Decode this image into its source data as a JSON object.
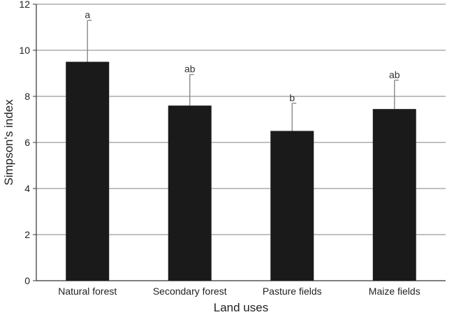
{
  "chart_data": {
    "type": "bar",
    "title": "",
    "xlabel": "Land uses",
    "ylabel": "Simpson's index",
    "ylim": [
      0,
      12
    ],
    "yticks": [
      0,
      2,
      4,
      6,
      8,
      10,
      12
    ],
    "grid": true,
    "categories": [
      "Natural forest",
      "Secondary forest",
      "Pasture fields",
      "Maize fields"
    ],
    "values": [
      9.5,
      7.6,
      6.5,
      7.45
    ],
    "error_upper": [
      11.3,
      8.95,
      7.7,
      8.7
    ],
    "significance_labels": [
      "a",
      "ab",
      "b",
      "ab"
    ],
    "colors": {
      "bar": "#1a1a1a",
      "grid": "#9a9a9a",
      "error": "#888888",
      "axis": "#333333"
    }
  }
}
